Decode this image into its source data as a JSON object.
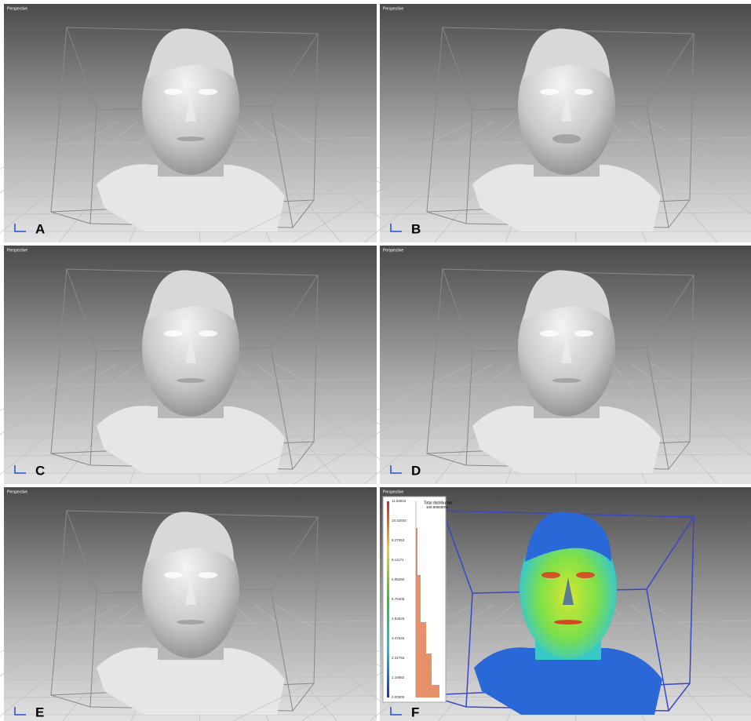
{
  "panels": [
    {
      "viewport": "Perspective",
      "label": "A"
    },
    {
      "viewport": "Perspective",
      "label": "B"
    },
    {
      "viewport": "Perspective",
      "label": "C"
    },
    {
      "viewport": "Perspective",
      "label": "D"
    },
    {
      "viewport": "Perspective",
      "label": "E"
    },
    {
      "viewport": "Perspective",
      "label": "F"
    }
  ],
  "legend": {
    "title": "Total distribution:",
    "total": "100.000000%",
    "ticks": [
      "11.58816",
      "10.42934",
      "9.27053",
      "8.11171",
      "6.95290",
      "5.79408",
      "4.63526",
      "3.47645",
      "2.31763",
      "1.15882",
      "0.00000"
    ]
  }
}
